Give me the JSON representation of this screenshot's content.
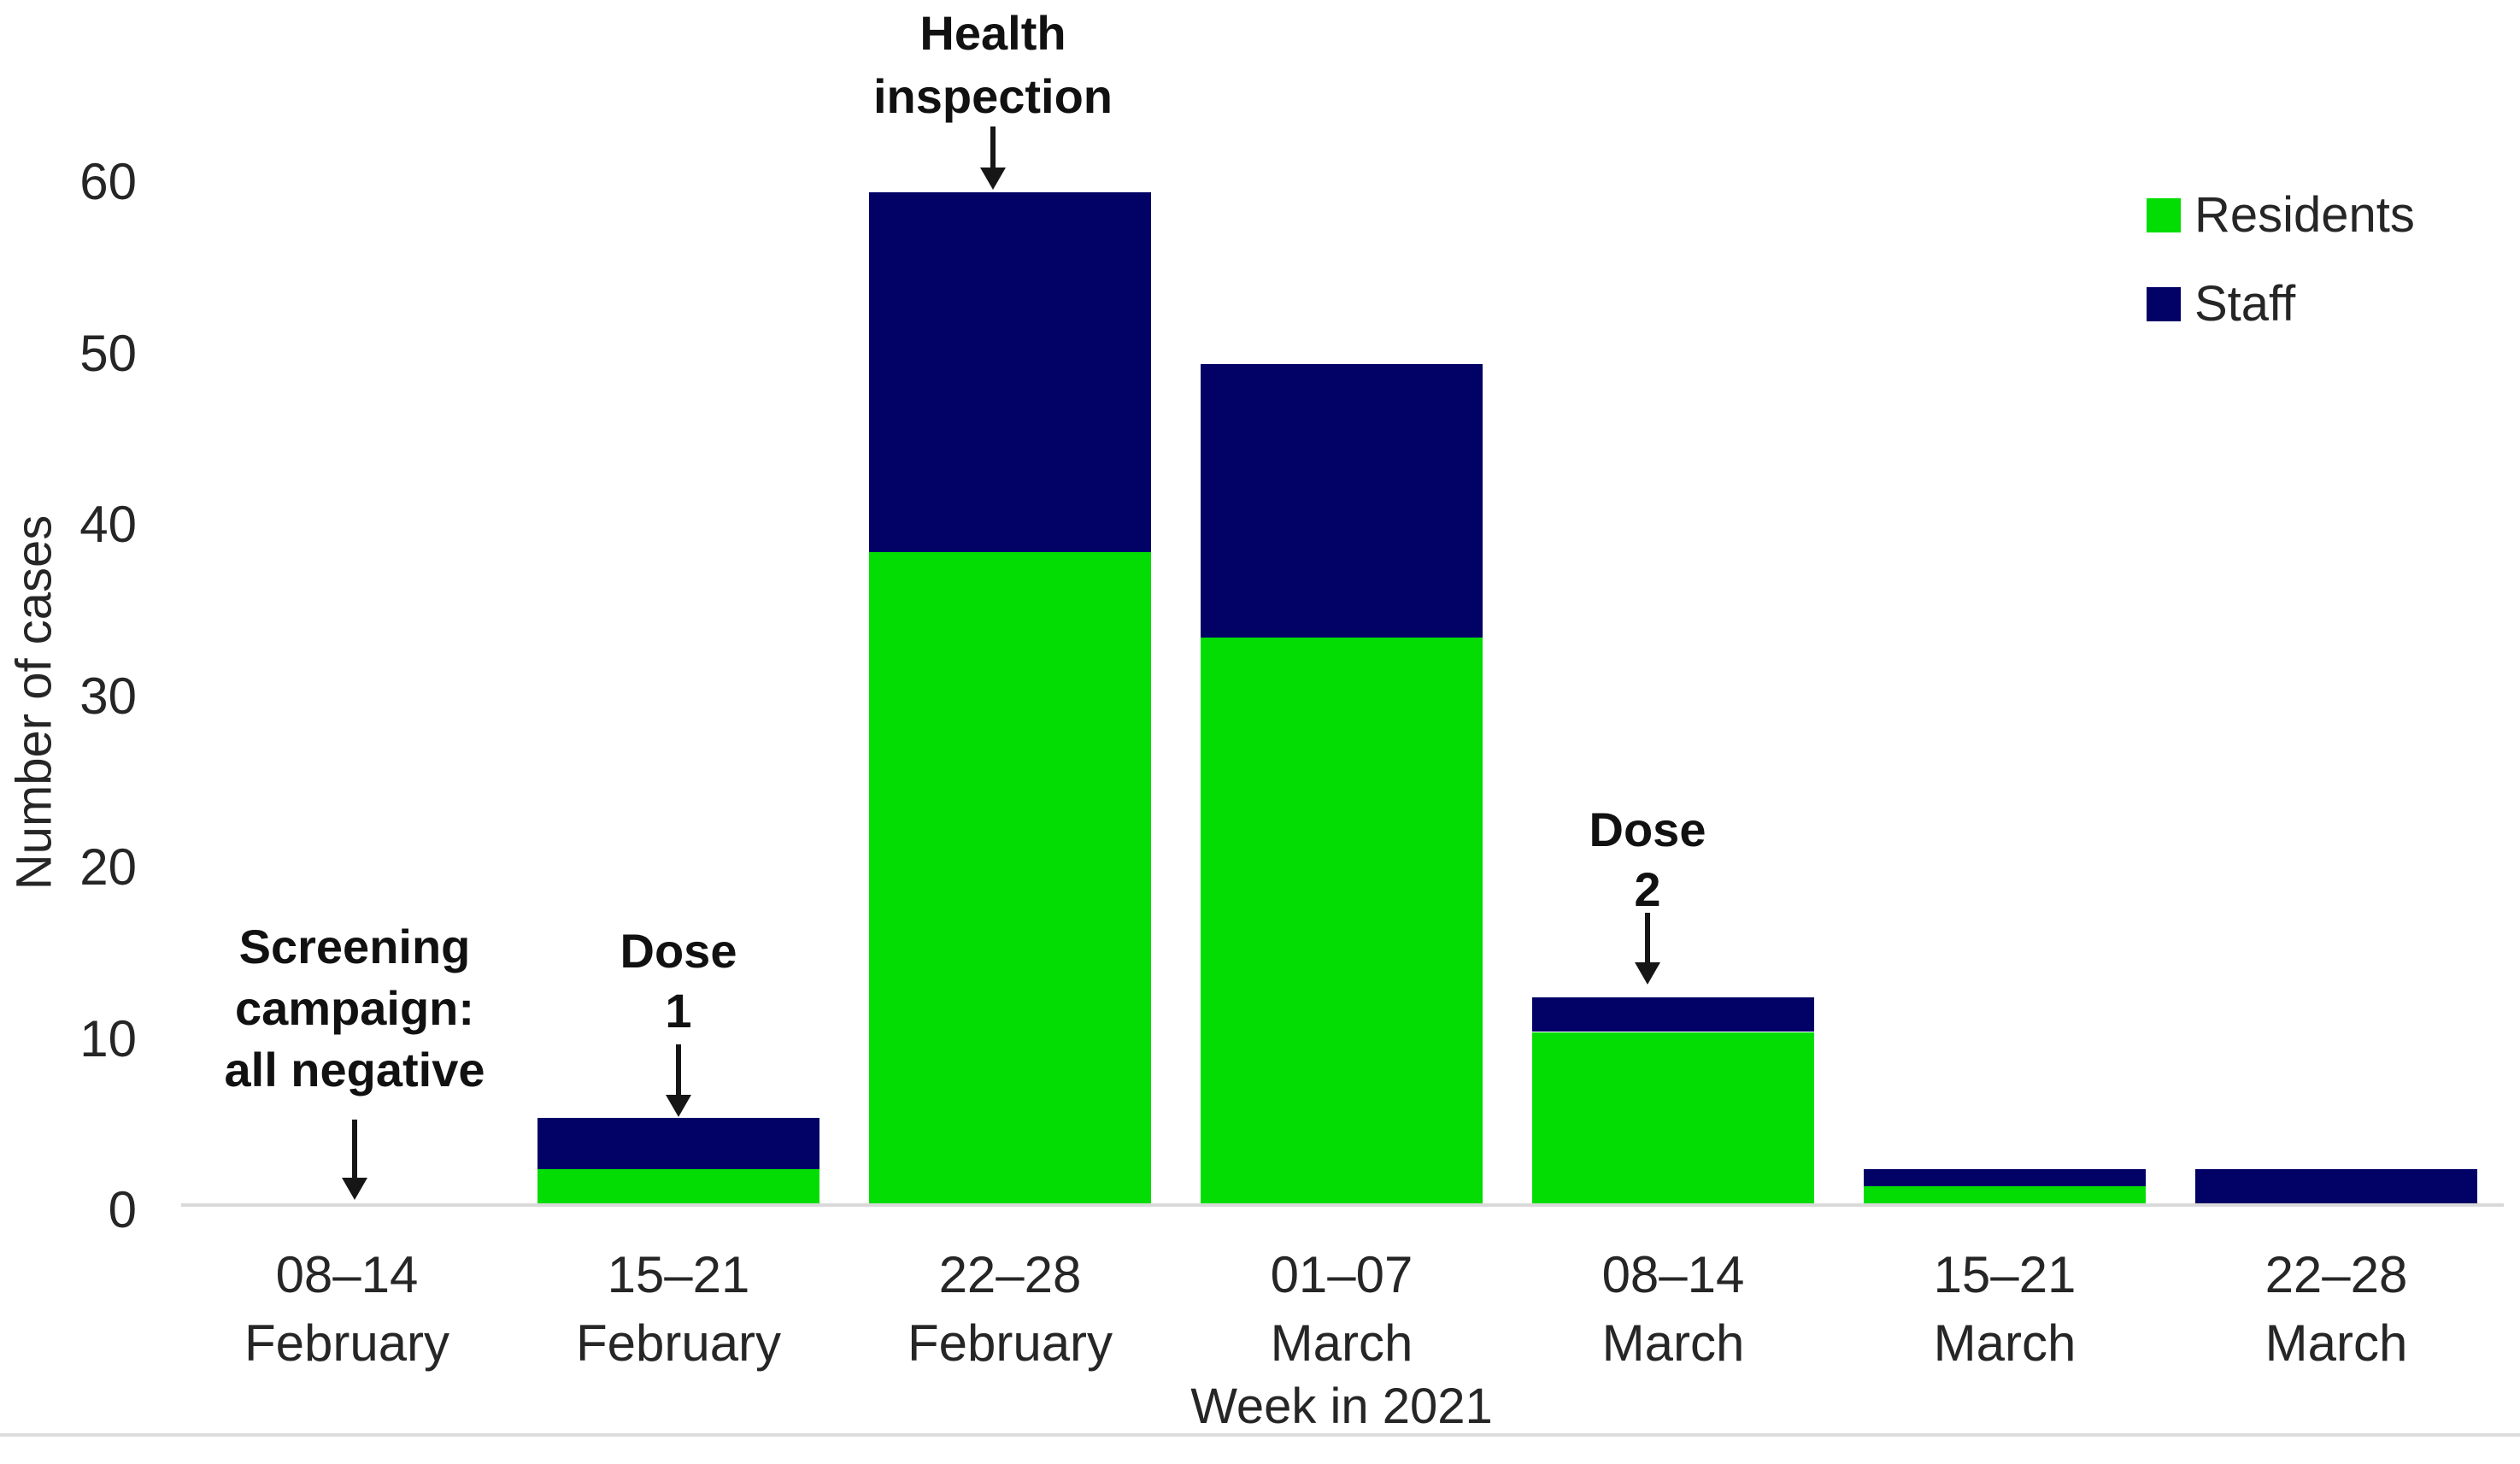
{
  "chart_data": {
    "type": "bar",
    "stacked": true,
    "title": "",
    "xlabel": "Week in 2021",
    "ylabel": "Number of cases",
    "ylim": [
      0,
      60
    ],
    "yticks": [
      0,
      10,
      20,
      30,
      40,
      50,
      60
    ],
    "grid": false,
    "legend_position": "top-right",
    "categories": [
      [
        "08–14",
        "February"
      ],
      [
        "15–21",
        "February"
      ],
      [
        "22–28",
        "February"
      ],
      [
        "01–07",
        "March"
      ],
      [
        "08–14",
        "March"
      ],
      [
        "15–21",
        "March"
      ],
      [
        "22–28",
        "March"
      ]
    ],
    "series": [
      {
        "name": "Residents",
        "color": "#04DD04",
        "values": [
          0,
          2,
          38,
          33,
          10,
          1,
          0
        ]
      },
      {
        "name": "Staff",
        "color": "#010166",
        "values": [
          0,
          3,
          21,
          16,
          2,
          1,
          2
        ]
      }
    ],
    "totals": [
      0,
      5,
      59,
      49,
      12,
      2,
      2
    ],
    "annotations": [
      {
        "lines": [
          "Screening",
          "campaign:",
          "all negative"
        ],
        "target_category": 0,
        "points_to": "baseline"
      },
      {
        "lines": [
          "Dose",
          "1"
        ],
        "target_category": 1,
        "points_to": "bar-top"
      },
      {
        "lines": [
          "Health",
          "inspection"
        ],
        "target_category": 2,
        "points_to": "bar-top"
      },
      {
        "lines": [
          "Dose",
          "2"
        ],
        "target_category": 4,
        "points_to": "bar-top"
      }
    ]
  },
  "legend": {
    "items": [
      {
        "label": "Residents",
        "color": "#04DD04"
      },
      {
        "label": "Staff",
        "color": "#010166"
      }
    ]
  },
  "colors": {
    "background": "#ffffff",
    "axis_line": "#d9d9d9",
    "text": "#262626",
    "annotation_text": "#111111",
    "residents": "#04DD04",
    "staff": "#010166"
  }
}
